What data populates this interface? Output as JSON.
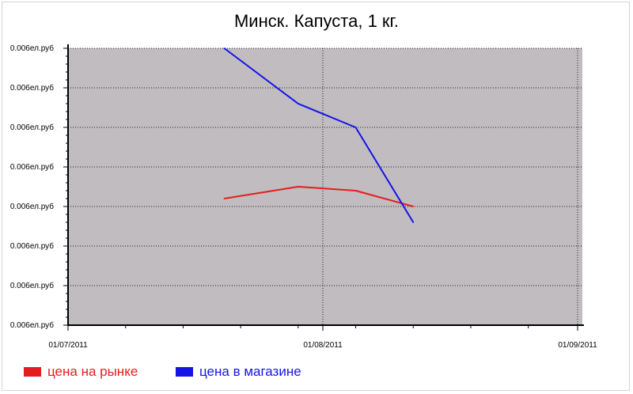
{
  "chart_data": {
    "type": "line",
    "title": "Минск. Капуста, 1 кг.",
    "xlabel": "",
    "ylabel": "",
    "x_ticks": [
      "01/07/2011",
      "01/08/2011",
      "01/09/2011"
    ],
    "y_tick_labels": [
      "0.006ел.руб",
      "0.006ел.руб",
      "0.006ел.руб",
      "0.006ел.руб",
      "0.006ел.руб",
      "0.006ел.руб",
      "0.006ел.руб",
      "0.006ел.руб"
    ],
    "xlim": [
      "2011-07-01",
      "2011-09-01"
    ],
    "ylim": [
      0,
      7
    ],
    "grid": true,
    "legend_position": "bottom-left",
    "background_color": "#c0bcc0",
    "series": [
      {
        "name": "цена на рынке",
        "color": "#e41e1e",
        "points": [
          {
            "x": "2011-07-20",
            "y": 3.2
          },
          {
            "x": "2011-07-29",
            "y": 3.5
          },
          {
            "x": "2011-08-05",
            "y": 3.4
          },
          {
            "x": "2011-08-12",
            "y": 3.0
          }
        ]
      },
      {
        "name": "цена в магазине",
        "color": "#1414e6",
        "points": [
          {
            "x": "2011-07-20",
            "y": 7.0
          },
          {
            "x": "2011-07-29",
            "y": 5.6
          },
          {
            "x": "2011-08-05",
            "y": 5.0
          },
          {
            "x": "2011-08-12",
            "y": 2.6
          }
        ]
      }
    ]
  }
}
